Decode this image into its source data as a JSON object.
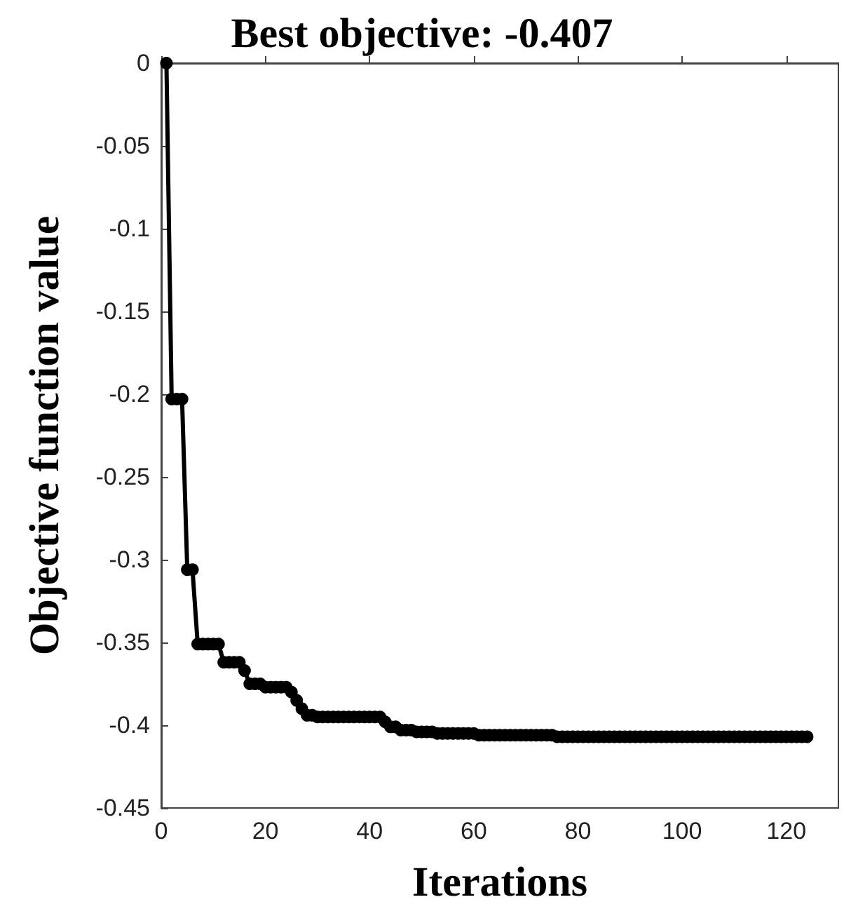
{
  "chart_data": {
    "type": "line",
    "title": "Best objective: -0.407",
    "xlabel": "Iterations",
    "ylabel": "Objective function value",
    "x": [
      1,
      2,
      3,
      4,
      5,
      6,
      7,
      8,
      9,
      10,
      11,
      12,
      13,
      14,
      15,
      16,
      17,
      18,
      19,
      20,
      21,
      22,
      23,
      24,
      25,
      26,
      27,
      28,
      29,
      30,
      31,
      32,
      33,
      34,
      35,
      36,
      37,
      38,
      39,
      40,
      41,
      42,
      43,
      44,
      45,
      46,
      47,
      48,
      49,
      50,
      51,
      52,
      53,
      54,
      55,
      56,
      57,
      58,
      59,
      60,
      61,
      62,
      63,
      64,
      65,
      66,
      67,
      68,
      69,
      70,
      71,
      72,
      73,
      74,
      75,
      76,
      77,
      78,
      79,
      80,
      81,
      82,
      83,
      84,
      85,
      86,
      87,
      88,
      89,
      90,
      91,
      92,
      93,
      94,
      95,
      96,
      97,
      98,
      99,
      100,
      101,
      102,
      103,
      104,
      105,
      106,
      107,
      108,
      109,
      110,
      111,
      112,
      113,
      114,
      115,
      116,
      117,
      118,
      119,
      120,
      121,
      122,
      123,
      124
    ],
    "series": [
      {
        "color": "#000000",
        "values": [
          0,
          -0.203,
          -0.203,
          -0.203,
          -0.306,
          -0.306,
          -0.351,
          -0.351,
          -0.351,
          -0.351,
          -0.351,
          -0.362,
          -0.362,
          -0.362,
          -0.362,
          -0.367,
          -0.375,
          -0.375,
          -0.375,
          -0.377,
          -0.377,
          -0.377,
          -0.377,
          -0.377,
          -0.38,
          -0.385,
          -0.39,
          -0.394,
          -0.394,
          -0.395,
          -0.395,
          -0.395,
          -0.395,
          -0.395,
          -0.395,
          -0.395,
          -0.395,
          -0.395,
          -0.395,
          -0.395,
          -0.395,
          -0.395,
          -0.398,
          -0.401,
          -0.401,
          -0.403,
          -0.403,
          -0.403,
          -0.404,
          -0.404,
          -0.404,
          -0.404,
          -0.405,
          -0.405,
          -0.405,
          -0.405,
          -0.405,
          -0.405,
          -0.405,
          -0.405,
          -0.406,
          -0.406,
          -0.406,
          -0.406,
          -0.406,
          -0.406,
          -0.406,
          -0.406,
          -0.406,
          -0.406,
          -0.406,
          -0.406,
          -0.406,
          -0.406,
          -0.406,
          -0.407,
          -0.407,
          -0.407,
          -0.407,
          -0.407,
          -0.407,
          -0.407,
          -0.407,
          -0.407,
          -0.407,
          -0.407,
          -0.407,
          -0.407,
          -0.407,
          -0.407,
          -0.407,
          -0.407,
          -0.407,
          -0.407,
          -0.407,
          -0.407,
          -0.407,
          -0.407,
          -0.407,
          -0.407,
          -0.407,
          -0.407,
          -0.407,
          -0.407,
          -0.407,
          -0.407,
          -0.407,
          -0.407,
          -0.407,
          -0.407,
          -0.407,
          -0.407,
          -0.407,
          -0.407,
          -0.407,
          -0.407,
          -0.407,
          -0.407,
          -0.407,
          -0.407,
          -0.407,
          -0.407,
          -0.407,
          -0.407
        ]
      }
    ],
    "xlim": [
      0,
      130
    ],
    "xticks": [
      0,
      20,
      40,
      60,
      80,
      100,
      120
    ],
    "ylim": [
      -0.45,
      0
    ],
    "yticks": [
      -0.45,
      -0.4,
      -0.35,
      -0.3,
      -0.25,
      -0.2,
      -0.15,
      -0.1,
      -0.05,
      0
    ],
    "grid": false,
    "marker": "circle",
    "line_style": "solid"
  }
}
